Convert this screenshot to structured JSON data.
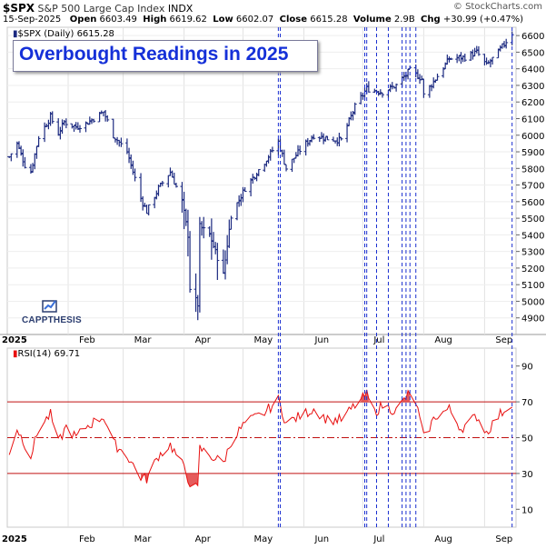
{
  "header": {
    "ticker": "$SPX",
    "description": "S&P 500 Large Cap Index",
    "exchange": "INDX",
    "brand": "© StockCharts.com",
    "date": "15-Sep-2025",
    "open_label": "Open",
    "open": "6603.49",
    "high_label": "High",
    "high": "6619.62",
    "low_label": "Low",
    "low": "6602.07",
    "close_label": "Close",
    "close": "6615.28",
    "volume_label": "Volume",
    "volume": "2.9B",
    "chg_label": "Chg",
    "chg": "+30.99 (+0.47%)"
  },
  "callout": {
    "text": "Overbought Readings in 2025"
  },
  "logo": {
    "text": "CAPPTHESIS"
  },
  "price_pane": {
    "legend": "$SPX (Daily) 6615.28"
  },
  "rsi_pane": {
    "legend": "RSI(14) 69.71"
  },
  "colors": {
    "bars": "#1c2a80",
    "rsi_line": "#e81010",
    "guide_lines": "#1a2fd0",
    "rsi_fill": "#e04040"
  },
  "chart_data": [
    {
      "type": "ohlc",
      "title": "$SPX (Daily)",
      "yticks": [
        4900,
        5000,
        5100,
        5200,
        5300,
        5400,
        5500,
        5600,
        5700,
        5800,
        5900,
        6000,
        6100,
        6200,
        6300,
        6400,
        6500,
        6600
      ],
      "ylim": [
        4800,
        6650
      ],
      "xticks": [
        "2025",
        "Feb",
        "Mar",
        "Apr",
        "May",
        "Jun",
        "Jul",
        "Aug",
        "Sep"
      ],
      "anchors": [
        {
          "x": "2025-01-02",
          "y": 5870
        },
        {
          "x": "2025-01-06",
          "y": 5950
        },
        {
          "x": "2025-01-10",
          "y": 5820
        },
        {
          "x": "2025-01-13",
          "y": 5780
        },
        {
          "x": "2025-01-17",
          "y": 5990
        },
        {
          "x": "2025-01-23",
          "y": 6110
        },
        {
          "x": "2025-01-27",
          "y": 6010
        },
        {
          "x": "2025-01-30",
          "y": 6080
        },
        {
          "x": "2025-02-05",
          "y": 6050
        },
        {
          "x": "2025-02-10",
          "y": 6070
        },
        {
          "x": "2025-02-19",
          "y": 6140
        },
        {
          "x": "2025-02-24",
          "y": 6000
        },
        {
          "x": "2025-03-03",
          "y": 5900
        },
        {
          "x": "2025-03-10",
          "y": 5620
        },
        {
          "x": "2025-03-13",
          "y": 5540
        },
        {
          "x": "2025-03-19",
          "y": 5680
        },
        {
          "x": "2025-03-25",
          "y": 5780
        },
        {
          "x": "2025-03-31",
          "y": 5600
        },
        {
          "x": "2025-04-03",
          "y": 5400
        },
        {
          "x": "2025-04-04",
          "y": 5080
        },
        {
          "x": "2025-04-08",
          "y": 4980
        },
        {
          "x": "2025-04-09",
          "y": 5450
        },
        {
          "x": "2025-04-14",
          "y": 5400
        },
        {
          "x": "2025-04-21",
          "y": 5160
        },
        {
          "x": "2025-04-25",
          "y": 5520
        },
        {
          "x": "2025-05-02",
          "y": 5680
        },
        {
          "x": "2025-05-12",
          "y": 5840
        },
        {
          "x": "2025-05-19",
          "y": 5960
        },
        {
          "x": "2025-05-23",
          "y": 5800
        },
        {
          "x": "2025-05-30",
          "y": 5910
        },
        {
          "x": "2025-06-06",
          "y": 6000
        },
        {
          "x": "2025-06-13",
          "y": 5980
        },
        {
          "x": "2025-06-20",
          "y": 5970
        },
        {
          "x": "2025-06-27",
          "y": 6170
        },
        {
          "x": "2025-07-03",
          "y": 6280
        },
        {
          "x": "2025-07-11",
          "y": 6260
        },
        {
          "x": "2025-07-18",
          "y": 6300
        },
        {
          "x": "2025-07-25",
          "y": 6390
        },
        {
          "x": "2025-07-31",
          "y": 6340
        },
        {
          "x": "2025-08-01",
          "y": 6240
        },
        {
          "x": "2025-08-07",
          "y": 6340
        },
        {
          "x": "2025-08-14",
          "y": 6460
        },
        {
          "x": "2025-08-22",
          "y": 6470
        },
        {
          "x": "2025-08-28",
          "y": 6500
        },
        {
          "x": "2025-09-02",
          "y": 6420
        },
        {
          "x": "2025-09-08",
          "y": 6500
        },
        {
          "x": "2025-09-15",
          "y": 6615
        }
      ]
    },
    {
      "type": "line",
      "title": "RSI(14)",
      "yticks": [
        10,
        30,
        50,
        70,
        90
      ],
      "ylim": [
        0,
        100
      ],
      "reference_lines": [
        70,
        50,
        30
      ],
      "xticks": [
        "2025",
        "Feb",
        "Mar",
        "Apr",
        "May",
        "Jun",
        "Jul",
        "Aug",
        "Sep"
      ],
      "anchors": [
        {
          "x": "2025-01-02",
          "y": 42
        },
        {
          "x": "2025-01-06",
          "y": 55
        },
        {
          "x": "2025-01-13",
          "y": 40
        },
        {
          "x": "2025-01-17",
          "y": 55
        },
        {
          "x": "2025-01-23",
          "y": 63
        },
        {
          "x": "2025-01-27",
          "y": 47
        },
        {
          "x": "2025-01-31",
          "y": 56
        },
        {
          "x": "2025-02-05",
          "y": 50
        },
        {
          "x": "2025-02-10",
          "y": 56
        },
        {
          "x": "2025-02-19",
          "y": 62
        },
        {
          "x": "2025-02-24",
          "y": 47
        },
        {
          "x": "2025-03-03",
          "y": 40
        },
        {
          "x": "2025-03-10",
          "y": 28
        },
        {
          "x": "2025-03-13",
          "y": 27
        },
        {
          "x": "2025-03-19",
          "y": 40
        },
        {
          "x": "2025-03-25",
          "y": 46
        },
        {
          "x": "2025-03-31",
          "y": 35
        },
        {
          "x": "2025-04-04",
          "y": 25
        },
        {
          "x": "2025-04-08",
          "y": 21
        },
        {
          "x": "2025-04-09",
          "y": 44
        },
        {
          "x": "2025-04-14",
          "y": 40
        },
        {
          "x": "2025-04-21",
          "y": 36
        },
        {
          "x": "2025-04-25",
          "y": 48
        },
        {
          "x": "2025-05-02",
          "y": 58
        },
        {
          "x": "2025-05-12",
          "y": 64
        },
        {
          "x": "2025-05-19",
          "y": 71
        },
        {
          "x": "2025-05-23",
          "y": 58
        },
        {
          "x": "2025-05-30",
          "y": 62
        },
        {
          "x": "2025-06-06",
          "y": 66
        },
        {
          "x": "2025-06-13",
          "y": 60
        },
        {
          "x": "2025-06-20",
          "y": 60
        },
        {
          "x": "2025-06-27",
          "y": 68
        },
        {
          "x": "2025-07-03",
          "y": 74
        },
        {
          "x": "2025-07-07",
          "y": 64
        },
        {
          "x": "2025-07-11",
          "y": 68
        },
        {
          "x": "2025-07-18",
          "y": 65
        },
        {
          "x": "2025-07-24",
          "y": 74
        },
        {
          "x": "2025-07-28",
          "y": 70
        },
        {
          "x": "2025-08-01",
          "y": 50
        },
        {
          "x": "2025-08-07",
          "y": 62
        },
        {
          "x": "2025-08-14",
          "y": 66
        },
        {
          "x": "2025-08-20",
          "y": 55
        },
        {
          "x": "2025-08-28",
          "y": 62
        },
        {
          "x": "2025-09-02",
          "y": 53
        },
        {
          "x": "2025-09-08",
          "y": 62
        },
        {
          "x": "2025-09-15",
          "y": 70
        }
      ]
    }
  ],
  "overbought_markers": [
    "2025-05-19",
    "2025-05-20",
    "2025-07-02",
    "2025-07-03",
    "2025-07-08",
    "2025-07-14",
    "2025-07-21",
    "2025-07-23",
    "2025-07-25",
    "2025-07-28",
    "2025-09-15"
  ]
}
